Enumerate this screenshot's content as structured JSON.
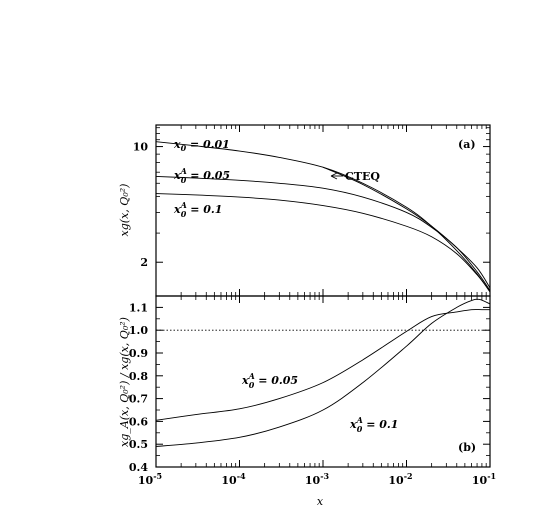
{
  "chart_data": [
    {
      "type": "line",
      "panel": "(a)",
      "ylabel": "xg(x, Q_0^2)",
      "yscale": "log",
      "ylim": [
        1.25,
        13.5
      ],
      "yticks": [
        2,
        10
      ],
      "xscale": "log",
      "xlim": [
        1e-05,
        0.1
      ],
      "series": [
        {
          "name": "x_0 = 0.01",
          "x": [
            1e-05,
            3e-05,
            0.0001,
            0.0003,
            0.001,
            0.003,
            0.01,
            0.02,
            0.04,
            0.07,
            0.1
          ],
          "y": [
            10.7,
            10.1,
            9.4,
            8.6,
            7.5,
            6.0,
            4.3,
            3.3,
            2.35,
            1.7,
            1.32
          ]
        },
        {
          "name": "CTEQ",
          "x": [
            0.001,
            0.003,
            0.01,
            0.02,
            0.04,
            0.07,
            0.1
          ],
          "y": [
            7.5,
            5.9,
            4.2,
            3.3,
            2.45,
            1.85,
            1.4
          ]
        },
        {
          "name": "x_0^A = 0.05",
          "x": [
            1e-05,
            3e-05,
            0.0001,
            0.0003,
            0.001,
            0.003,
            0.01,
            0.02,
            0.04,
            0.07,
            0.1
          ],
          "y": [
            6.6,
            6.45,
            6.25,
            6.0,
            5.6,
            4.95,
            4.0,
            3.25,
            2.45,
            1.75,
            1.35
          ]
        },
        {
          "name": "x_0^A = 0.1",
          "x": [
            1e-05,
            3e-05,
            0.0001,
            0.0003,
            0.001,
            0.003,
            0.01,
            0.02,
            0.04,
            0.07,
            0.1
          ],
          "y": [
            5.2,
            5.1,
            4.95,
            4.75,
            4.4,
            3.95,
            3.3,
            2.85,
            2.25,
            1.68,
            1.33
          ]
        }
      ],
      "annotations": [
        "x_0 = 0.01",
        "x_0^A = 0.05",
        "x_0^A = 0.1",
        "CTEQ",
        "(a)"
      ]
    },
    {
      "type": "line",
      "panel": "(b)",
      "xlabel": "x",
      "ylabel": "xg_A(x, Q_0^2) / xg(x, Q_0^2)",
      "xscale": "log",
      "xlim": [
        1e-05,
        0.1
      ],
      "xticks": [
        "10^-5",
        "10^-4",
        "10^-3",
        "10^-2",
        "10^-1"
      ],
      "ylim": [
        0.4,
        1.15
      ],
      "yticks": [
        "0.4",
        "0.5",
        "0.6",
        "0.7",
        "0.8",
        "0.9",
        "1.0",
        "1.1"
      ],
      "reference_line": 1.0,
      "series": [
        {
          "name": "x_0^A = 0.05",
          "x": [
            1e-05,
            3e-05,
            0.0001,
            0.0003,
            0.001,
            0.003,
            0.01,
            0.02,
            0.04,
            0.06,
            0.08,
            0.1
          ],
          "y": [
            0.605,
            0.63,
            0.655,
            0.7,
            0.77,
            0.87,
            0.995,
            1.06,
            1.08,
            1.09,
            1.09,
            1.09
          ]
        },
        {
          "name": "x_0^A = 0.1",
          "x": [
            1e-05,
            3e-05,
            0.0001,
            0.0003,
            0.001,
            0.003,
            0.01,
            0.02,
            0.04,
            0.06,
            0.075,
            0.1
          ],
          "y": [
            0.49,
            0.505,
            0.53,
            0.575,
            0.65,
            0.77,
            0.93,
            1.03,
            1.1,
            1.13,
            1.135,
            1.115
          ]
        }
      ],
      "annotations": [
        "x_0^A = 0.05",
        "x_0^A = 0.1",
        "(b)"
      ]
    }
  ],
  "text": {
    "panel_a": {
      "tag": "(a)",
      "cteq": "CTEQ",
      "ylabel": "xg(x, Q₀²)",
      "ytick_10": "10",
      "ytick_2": "2"
    },
    "panel_b": {
      "tag": "(b)",
      "xlabel": "x",
      "ylabel": "xg_A(x, Q₀²) / xg(x, Q₀²)"
    }
  }
}
